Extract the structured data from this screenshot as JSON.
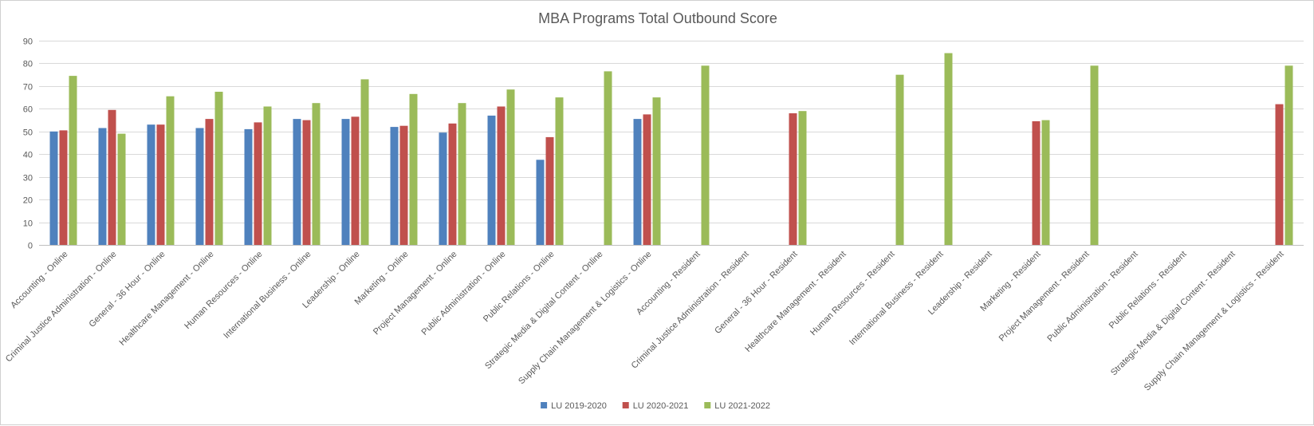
{
  "chart_data": {
    "type": "bar",
    "title": "MBA Programs Total Outbound Score",
    "xlabel": "",
    "ylabel": "",
    "ylim": [
      0,
      90
    ],
    "y_ticks": [
      0,
      10,
      20,
      30,
      40,
      50,
      60,
      70,
      80,
      90
    ],
    "grid": true,
    "legend_position": "bottom",
    "categories": [
      "Accounting - Online",
      "Criminal Justice Administration - Online",
      "General - 36 Hour - Online",
      "Healthcare Management - Online",
      "Human Resources - Online",
      "International Business - Online",
      "Leadership - Online",
      "Marketing - Online",
      "Project Management - Online",
      "Public Administration - Online",
      "Public Relations - Online",
      "Strategic Media & Digital Content - Online",
      "Supply Chain Management & Logistics - Online",
      "Accounting - Resident",
      "Criminal Justice Administration - Resident",
      "General - 36 Hour - Resident",
      "Healthcare Management - Resident",
      "Human Resources - Resident",
      "International Business - Resident",
      "Leadership - Resident",
      "Marketing - Resident",
      "Project Management - Resident",
      "Public Administration - Resident",
      "Public Relations - Resident",
      "Strategic Media & Digital Content - Resident",
      "Supply Chain Management & Logistics - Resident"
    ],
    "series": [
      {
        "name": "LU 2019-2020",
        "color": "#4f81bd",
        "values": [
          50,
          51.5,
          53,
          51.5,
          51,
          55.5,
          55.5,
          52,
          49.5,
          57,
          37.5,
          null,
          55.5,
          null,
          null,
          null,
          null,
          null,
          null,
          null,
          null,
          null,
          null,
          null,
          null,
          null
        ]
      },
      {
        "name": "LU 2020-2021",
        "color": "#c0504d",
        "values": [
          50.5,
          59.5,
          53,
          55.5,
          54,
          55,
          56.5,
          52.5,
          53.5,
          61,
          47.5,
          null,
          57.5,
          null,
          null,
          58,
          null,
          null,
          null,
          null,
          54.5,
          null,
          null,
          null,
          null,
          62
        ]
      },
      {
        "name": "LU 2021-2022",
        "color": "#9bbb59",
        "values": [
          74.5,
          49,
          65.5,
          67.5,
          61,
          62.5,
          73,
          66.5,
          62.5,
          68.5,
          65,
          76.5,
          65,
          79,
          null,
          59,
          null,
          75,
          84.5,
          null,
          55,
          79,
          null,
          null,
          null,
          79
        ]
      }
    ]
  }
}
